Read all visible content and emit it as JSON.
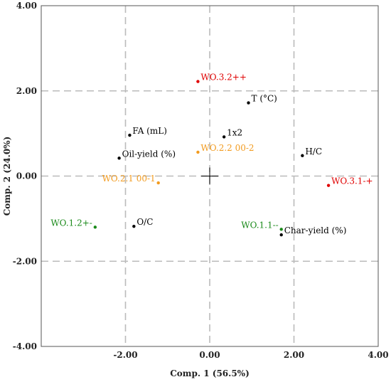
{
  "chart_data": {
    "type": "scatter",
    "title": "",
    "xlabel": "Comp. 1 (56.5%)",
    "ylabel": "Comp. 2 (24.0%)",
    "xlim": [
      -4.0,
      4.0
    ],
    "ylim": [
      -4.0,
      4.0
    ],
    "x_ticks": [
      {
        "value": -2,
        "label": "-2.00"
      },
      {
        "value": 0,
        "label": "0.00"
      },
      {
        "value": 2,
        "label": "2.00"
      },
      {
        "value": 4,
        "label": "4.00"
      }
    ],
    "y_ticks": [
      {
        "value": -4,
        "label": "-4.00"
      },
      {
        "value": -2,
        "label": "-2.00"
      },
      {
        "value": 0,
        "label": "0.00"
      },
      {
        "value": 2,
        "label": "2.00"
      },
      {
        "value": 4,
        "label": "4.00"
      }
    ],
    "grid": "dashed",
    "origin_marker": true,
    "colors": {
      "variable": "#000000",
      "high_red": "#e00000",
      "center_orange": "#f29b1f",
      "low_green": "#1a8a1a",
      "grid": "#bbbbbb"
    },
    "points": [
      {
        "label": "WO.3.2++",
        "x": -0.28,
        "y": 2.22,
        "color": "#e00000",
        "anchor": "start"
      },
      {
        "label": "T (°C)",
        "x": 0.92,
        "y": 1.72,
        "color": "#000000",
        "anchor": "start"
      },
      {
        "label": "FA (mL)",
        "x": -1.9,
        "y": 0.96,
        "color": "#000000",
        "anchor": "start"
      },
      {
        "label": "1x2",
        "x": 0.34,
        "y": 0.92,
        "color": "#000000",
        "anchor": "start"
      },
      {
        "label": "H/C",
        "x": 2.2,
        "y": 0.48,
        "color": "#000000",
        "anchor": "start"
      },
      {
        "label": "Oil-yield (%)",
        "x": -2.15,
        "y": 0.42,
        "color": "#000000",
        "anchor": "start"
      },
      {
        "label": "WO.2.2 00-2",
        "x": -0.28,
        "y": 0.56,
        "color": "#f29b1f",
        "anchor": "start"
      },
      {
        "label": "WO.2.1 00-1",
        "x": -1.22,
        "y": -0.16,
        "color": "#f29b1f",
        "anchor": "end"
      },
      {
        "label": "WO.3.1-+",
        "x": 2.82,
        "y": -0.22,
        "color": "#e00000",
        "anchor": "start"
      },
      {
        "label": "WO.1.2+-",
        "x": -2.72,
        "y": -1.2,
        "color": "#1a8a1a",
        "anchor": "end"
      },
      {
        "label": "O/C",
        "x": -1.8,
        "y": -1.18,
        "color": "#000000",
        "anchor": "start"
      },
      {
        "label": "WO.1.1--",
        "x": 1.7,
        "y": -1.25,
        "color": "#1a8a1a",
        "anchor": "end"
      },
      {
        "label": "Char-yield (%)",
        "x": 1.7,
        "y": -1.38,
        "color": "#000000",
        "anchor": "start"
      }
    ]
  }
}
